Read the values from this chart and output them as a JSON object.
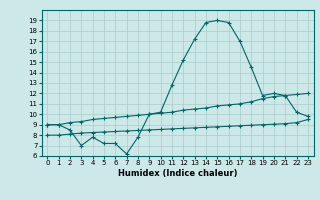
{
  "title": "",
  "xlabel": "Humidex (Indice chaleur)",
  "background_color": "#cce8e8",
  "grid_color": "#aacccc",
  "line_color": "#006666",
  "x_values": [
    0,
    1,
    2,
    3,
    4,
    5,
    6,
    7,
    8,
    9,
    10,
    11,
    12,
    13,
    14,
    15,
    16,
    17,
    18,
    19,
    20,
    21,
    22,
    23
  ],
  "y_main": [
    9.0,
    9.0,
    8.5,
    7.0,
    7.8,
    7.2,
    7.2,
    6.2,
    7.8,
    10.0,
    10.2,
    12.8,
    15.2,
    17.2,
    18.8,
    19.0,
    18.8,
    17.0,
    14.5,
    11.8,
    12.0,
    11.8,
    10.2,
    9.8
  ],
  "y_upper": [
    9.0,
    9.0,
    9.2,
    9.3,
    9.5,
    9.6,
    9.7,
    9.8,
    9.9,
    10.0,
    10.1,
    10.2,
    10.4,
    10.5,
    10.6,
    10.8,
    10.9,
    11.0,
    11.2,
    11.5,
    11.7,
    11.8,
    11.9,
    12.0
  ],
  "y_lower": [
    8.0,
    8.0,
    8.1,
    8.2,
    8.25,
    8.3,
    8.35,
    8.4,
    8.45,
    8.5,
    8.55,
    8.6,
    8.65,
    8.7,
    8.75,
    8.8,
    8.85,
    8.9,
    8.95,
    9.0,
    9.05,
    9.1,
    9.2,
    9.5
  ],
  "ylim": [
    6,
    20
  ],
  "xlim": [
    -0.5,
    23.5
  ],
  "yticks": [
    6,
    7,
    8,
    9,
    10,
    11,
    12,
    13,
    14,
    15,
    16,
    17,
    18,
    19
  ],
  "xticks": [
    0,
    1,
    2,
    3,
    4,
    5,
    6,
    7,
    8,
    9,
    10,
    11,
    12,
    13,
    14,
    15,
    16,
    17,
    18,
    19,
    20,
    21,
    22,
    23
  ],
  "marker": "+",
  "markersize": 3,
  "linewidth": 0.8,
  "tick_fontsize": 5.0,
  "xlabel_fontsize": 6.0
}
